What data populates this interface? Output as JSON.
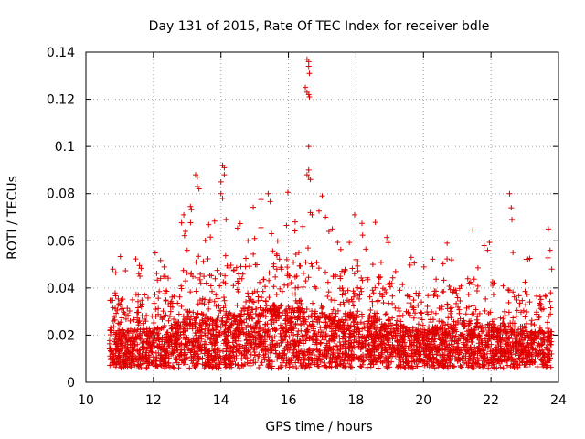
{
  "chart_data": {
    "type": "scatter",
    "title": "Day 131 of 2015, Rate Of TEC Index for receiver bdle",
    "xlabel": "GPS time / hours",
    "ylabel": "ROTI / TECUs",
    "xlim": [
      10,
      24
    ],
    "ylim": [
      0,
      0.14
    ],
    "x_ticks": [
      10,
      12,
      14,
      16,
      18,
      20,
      22,
      24
    ],
    "x_tick_labels": [
      "10",
      "12",
      "14",
      "16",
      "18",
      "20",
      "22",
      "24"
    ],
    "y_ticks": [
      0,
      0.02,
      0.04,
      0.06,
      0.08,
      0.1,
      0.12,
      0.14
    ],
    "y_tick_labels": [
      "0",
      "0.02",
      "0.04",
      "0.06",
      "0.08",
      "0.1",
      "0.12",
      "0.14"
    ],
    "grid": true,
    "marker": "+",
    "marker_color": "#e00000",
    "data_range_x": [
      10.7,
      23.8
    ],
    "series": [
      {
        "name": "ROTI",
        "points": [
          [
            10.8,
            0.048
          ],
          [
            11.6,
            0.045
          ],
          [
            12.9,
            0.071
          ],
          [
            12.95,
            0.064
          ],
          [
            13.0,
            0.056
          ],
          [
            13.25,
            0.088
          ],
          [
            13.3,
            0.087
          ],
          [
            13.3,
            0.083
          ],
          [
            13.35,
            0.082
          ],
          [
            14.0,
            0.085
          ],
          [
            14.05,
            0.092
          ],
          [
            14.1,
            0.091
          ],
          [
            14.1,
            0.088
          ],
          [
            14.0,
            0.08
          ],
          [
            14.05,
            0.078
          ],
          [
            14.15,
            0.069
          ],
          [
            14.8,
            0.06
          ],
          [
            15.0,
            0.061
          ],
          [
            15.4,
            0.08
          ],
          [
            15.5,
            0.063
          ],
          [
            16.2,
            0.068
          ],
          [
            16.55,
            0.137
          ],
          [
            16.6,
            0.136
          ],
          [
            16.6,
            0.134
          ],
          [
            16.62,
            0.131
          ],
          [
            16.5,
            0.125
          ],
          [
            16.55,
            0.123
          ],
          [
            16.6,
            0.122
          ],
          [
            16.62,
            0.121
          ],
          [
            16.6,
            0.1
          ],
          [
            16.55,
            0.088
          ],
          [
            16.6,
            0.087
          ],
          [
            16.65,
            0.086
          ],
          [
            16.6,
            0.09
          ],
          [
            16.65,
            0.072
          ],
          [
            16.7,
            0.071
          ],
          [
            17.0,
            0.079
          ],
          [
            17.1,
            0.07
          ],
          [
            17.2,
            0.064
          ],
          [
            17.3,
            0.065
          ],
          [
            18.0,
            0.052
          ],
          [
            18.5,
            0.05
          ],
          [
            20.7,
            0.059
          ],
          [
            21.8,
            0.058
          ],
          [
            21.9,
            0.056
          ],
          [
            22.55,
            0.08
          ],
          [
            22.6,
            0.074
          ],
          [
            22.62,
            0.069
          ],
          [
            22.65,
            0.055
          ],
          [
            23.7,
            0.065
          ],
          [
            23.75,
            0.056
          ],
          [
            23.8,
            0.048
          ]
        ]
      }
    ]
  }
}
